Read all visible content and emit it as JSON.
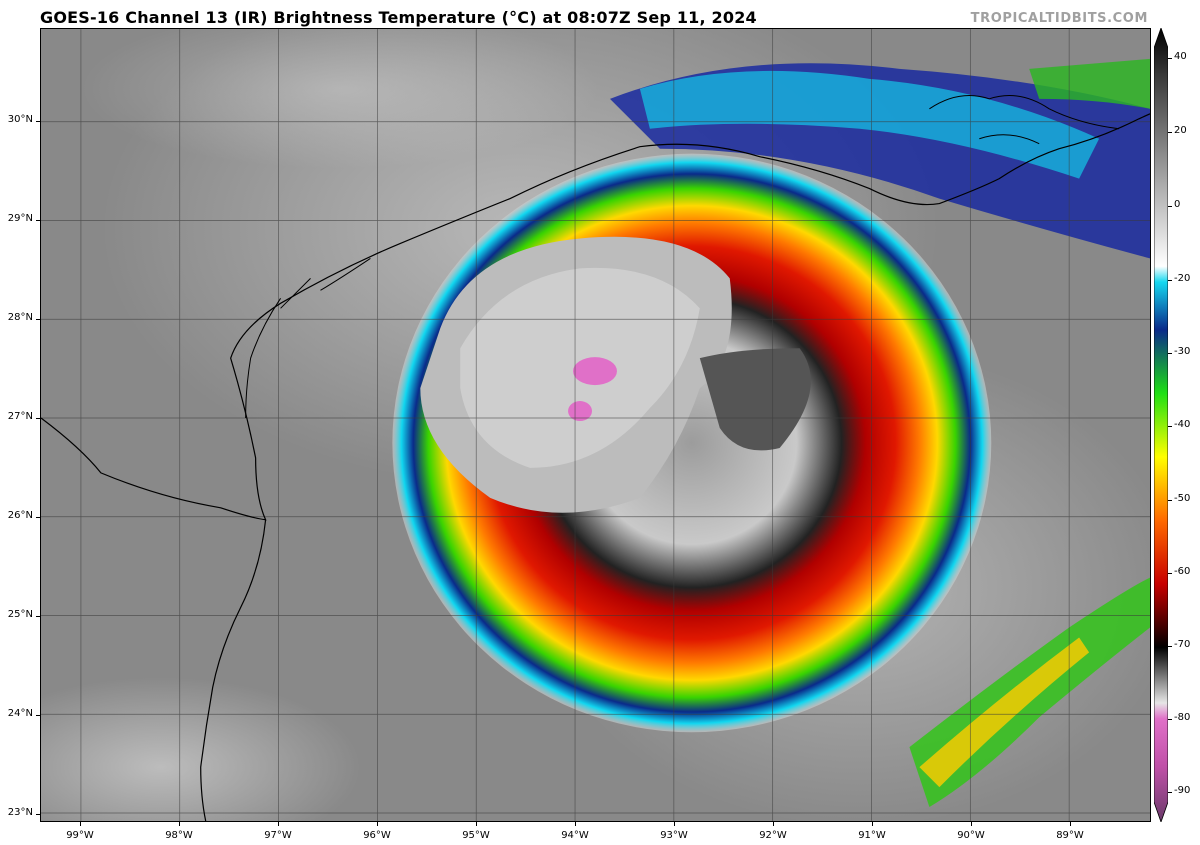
{
  "title": "GOES-16 Channel 13 (IR) Brightness Temperature (°C) at 08:07Z Sep 11, 2024",
  "credit": "TROPICALTIDBITS.COM",
  "map": {
    "lat_labels": [
      "30°N",
      "29°N",
      "28°N",
      "27°N",
      "26°N",
      "25°N",
      "24°N",
      "23°N"
    ],
    "lon_labels": [
      "99°W",
      "98°W",
      "97°W",
      "96°W",
      "95°W",
      "94°W",
      "93°W",
      "92°W",
      "91°W",
      "90°W",
      "89°W"
    ],
    "storm_feature": "hurricane-cloud-shield",
    "colors": {
      "background_cloud": "#8a8a8a",
      "warm_land": "#7a7a7a",
      "coast_line": "#000000"
    }
  },
  "colorbar": {
    "labels": [
      "40",
      "20",
      "0",
      "-20",
      "-30",
      "-40",
      "-50",
      "-60",
      "-70",
      "-80",
      "-90"
    ],
    "values": [
      40,
      20,
      0,
      -20,
      -30,
      -40,
      -50,
      -60,
      -70,
      -80,
      -90
    ],
    "range": [
      -90,
      40
    ]
  }
}
